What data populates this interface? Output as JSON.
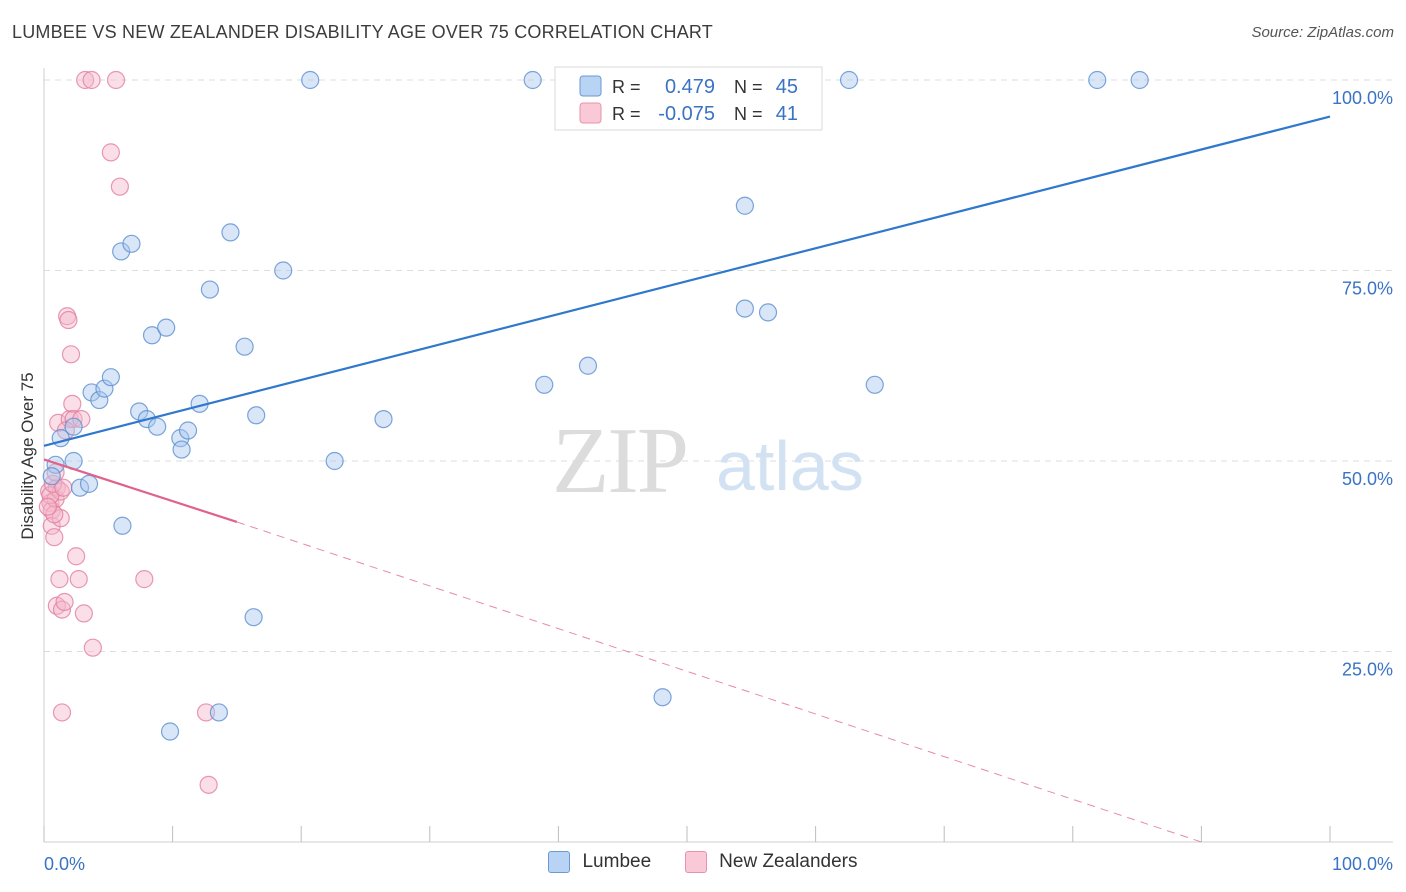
{
  "header": {
    "title": "LUMBEE VS NEW ZEALANDER DISABILITY AGE OVER 75 CORRELATION CHART",
    "source": "Source: ZipAtlas.com"
  },
  "watermark": {
    "zip": "ZIP",
    "atlas": "atlas"
  },
  "colors": {
    "lumbee_fill": "#a9c8ee",
    "lumbee_stroke": "#5b8fd1",
    "lumbee_line": "#2f78cd",
    "nz_fill": "#f5b8cb",
    "nz_stroke": "#e2809f",
    "nz_line": "#e0628b",
    "axis_label": "#3a73c4",
    "grid": "#dddddd"
  },
  "stats_legend": {
    "r_label": "R =",
    "n_label": "N =",
    "rows": [
      {
        "series": "Lumbee",
        "r": "0.479",
        "n": "45"
      },
      {
        "series": "New Zealanders",
        "r": "-0.075",
        "n": "41"
      }
    ]
  },
  "chart_data": {
    "type": "scatter",
    "title": "LUMBEE VS NEW ZEALANDER DISABILITY AGE OVER 75 CORRELATION CHART",
    "xlabel": "",
    "ylabel": "Disability Age Over 75",
    "xlim": [
      0,
      100
    ],
    "ylim": [
      0,
      100
    ],
    "x_tick_labels": [
      "0.0%",
      "100.0%"
    ],
    "y_ticks": [
      25,
      50,
      75,
      100
    ],
    "y_tick_labels": [
      "25.0%",
      "50.0%",
      "75.0%",
      "100.0%"
    ],
    "grid": true,
    "legend_position": "bottom",
    "series": [
      {
        "name": "Lumbee",
        "r": 0.479,
        "n": 45,
        "trend": {
          "x": [
            0,
            100
          ],
          "y": [
            52,
            95.2
          ],
          "style": "solid"
        },
        "points": [
          {
            "x": 0.9,
            "y": 49.5
          },
          {
            "x": 1.3,
            "y": 53.0
          },
          {
            "x": 2.3,
            "y": 54.5
          },
          {
            "x": 2.3,
            "y": 50.0
          },
          {
            "x": 2.8,
            "y": 46.5
          },
          {
            "x": 3.5,
            "y": 47.0
          },
          {
            "x": 3.7,
            "y": 59.0
          },
          {
            "x": 4.3,
            "y": 58.0
          },
          {
            "x": 4.7,
            "y": 59.5
          },
          {
            "x": 5.2,
            "y": 61.0
          },
          {
            "x": 6.1,
            "y": 41.5
          },
          {
            "x": 6.0,
            "y": 77.5
          },
          {
            "x": 6.8,
            "y": 78.5
          },
          {
            "x": 7.4,
            "y": 56.5
          },
          {
            "x": 8.0,
            "y": 55.5
          },
          {
            "x": 8.4,
            "y": 66.5
          },
          {
            "x": 8.8,
            "y": 54.5
          },
          {
            "x": 9.5,
            "y": 67.5
          },
          {
            "x": 9.8,
            "y": 14.5
          },
          {
            "x": 10.6,
            "y": 53.0
          },
          {
            "x": 10.7,
            "y": 51.5
          },
          {
            "x": 11.2,
            "y": 54.0
          },
          {
            "x": 12.1,
            "y": 57.5
          },
          {
            "x": 12.9,
            "y": 72.5
          },
          {
            "x": 13.6,
            "y": 17.0
          },
          {
            "x": 14.5,
            "y": 80.0
          },
          {
            "x": 15.6,
            "y": 65.0
          },
          {
            "x": 16.3,
            "y": 29.5
          },
          {
            "x": 16.5,
            "y": 56.0
          },
          {
            "x": 18.6,
            "y": 75.0
          },
          {
            "x": 20.7,
            "y": 100.0
          },
          {
            "x": 22.6,
            "y": 50.0
          },
          {
            "x": 26.4,
            "y": 55.5
          },
          {
            "x": 38.0,
            "y": 100.0
          },
          {
            "x": 38.9,
            "y": 60.0
          },
          {
            "x": 42.3,
            "y": 62.5
          },
          {
            "x": 48.1,
            "y": 19.0
          },
          {
            "x": 54.5,
            "y": 83.5
          },
          {
            "x": 54.5,
            "y": 70.0
          },
          {
            "x": 56.3,
            "y": 69.5
          },
          {
            "x": 62.6,
            "y": 100.0
          },
          {
            "x": 64.6,
            "y": 60.0
          },
          {
            "x": 81.9,
            "y": 100.0
          },
          {
            "x": 85.2,
            "y": 100.0
          },
          {
            "x": 0.6,
            "y": 48.0
          }
        ]
      },
      {
        "name": "New Zealanders",
        "r": -0.075,
        "n": 41,
        "trend": {
          "x": [
            0,
            15
          ],
          "y": [
            50.2,
            42.0
          ],
          "style": "solid",
          "dashed_to": {
            "x": 90,
            "y": 0
          }
        },
        "points": [
          {
            "x": 0.4,
            "y": 46.0
          },
          {
            "x": 0.5,
            "y": 44.5
          },
          {
            "x": 0.6,
            "y": 43.5
          },
          {
            "x": 0.6,
            "y": 41.5
          },
          {
            "x": 0.8,
            "y": 40.0
          },
          {
            "x": 0.9,
            "y": 45.0
          },
          {
            "x": 1.0,
            "y": 46.5
          },
          {
            "x": 1.0,
            "y": 31.0
          },
          {
            "x": 1.1,
            "y": 55.0
          },
          {
            "x": 1.2,
            "y": 34.5
          },
          {
            "x": 1.3,
            "y": 42.5
          },
          {
            "x": 1.3,
            "y": 46.0
          },
          {
            "x": 1.4,
            "y": 17.0
          },
          {
            "x": 1.4,
            "y": 30.5
          },
          {
            "x": 1.6,
            "y": 31.5
          },
          {
            "x": 1.8,
            "y": 69.0
          },
          {
            "x": 1.9,
            "y": 68.5
          },
          {
            "x": 2.0,
            "y": 55.5
          },
          {
            "x": 2.1,
            "y": 64.0
          },
          {
            "x": 2.2,
            "y": 57.5
          },
          {
            "x": 2.3,
            "y": 55.5
          },
          {
            "x": 2.5,
            "y": 37.5
          },
          {
            "x": 2.7,
            "y": 34.5
          },
          {
            "x": 2.9,
            "y": 55.5
          },
          {
            "x": 3.1,
            "y": 30.0
          },
          {
            "x": 3.2,
            "y": 100.0
          },
          {
            "x": 3.7,
            "y": 100.0
          },
          {
            "x": 3.8,
            "y": 25.5
          },
          {
            "x": 5.2,
            "y": 90.5
          },
          {
            "x": 5.6,
            "y": 100.0
          },
          {
            "x": 5.9,
            "y": 86.0
          },
          {
            "x": 7.8,
            "y": 34.5
          },
          {
            "x": 12.6,
            "y": 17.0
          },
          {
            "x": 12.8,
            "y": 7.5
          },
          {
            "x": 0.5,
            "y": 45.5
          },
          {
            "x": 0.7,
            "y": 47.0
          },
          {
            "x": 0.8,
            "y": 43.0
          },
          {
            "x": 1.5,
            "y": 46.5
          },
          {
            "x": 0.3,
            "y": 44.0
          },
          {
            "x": 0.9,
            "y": 48.5
          },
          {
            "x": 1.7,
            "y": 54.0
          }
        ]
      }
    ]
  }
}
